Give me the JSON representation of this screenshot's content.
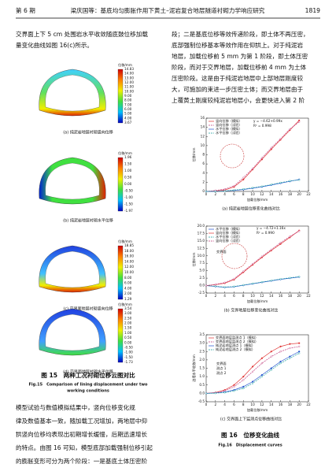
{
  "header": {
    "issue": "第 6 期",
    "running_title": "梁庆国等：基底均匀膨胀作用下黄土–泥岩复合地层隧道衬砌力学响应研究",
    "page": "1819"
  },
  "left_text": [
    "交界面上下 5 cm 处围岩水平收敛随底鼓位移加载",
    "量变化曲线如图 16(c)所示。"
  ],
  "figure15": {
    "panels": [
      {
        "unit": "位移/mm",
        "scale": [
          "14.83",
          "14.00",
          "13.00",
          "12.00",
          "11.00",
          "10.00",
          "9.00",
          "8.00",
          "7.00",
          "6.00",
          "5.00",
          "4.00",
          "3.67"
        ],
        "caption": "(a) 纯泥岩地层衬砌竖向位移"
      },
      {
        "unit": "位移/mm",
        "scale": [
          "1.96",
          "1.50",
          "1.00",
          "0.50",
          "0.00",
          "-0.50",
          "-1.00",
          "-1.50",
          "-1.97"
        ],
        "caption": "(b) 纯泥岩地层衬砌水平位移"
      },
      {
        "unit": "位移/mm",
        "scale": [
          "18.85",
          "18.00",
          "16.00",
          "14.00",
          "12.00",
          "10.00",
          "8.00",
          "6.00",
          "4.00",
          "2.00",
          "1.29"
        ],
        "caption": "(c) 交界面地层衬砌竖向位移"
      },
      {
        "unit": "位移/mm",
        "scale": [
          "3.54",
          "3.00",
          "2.50",
          "2.00",
          "1.50",
          "1.00",
          "0.50",
          "0.00",
          "-0.50",
          "-1.00",
          "-1.50",
          "-1.73"
        ],
        "caption": "(d) 交界面地层衬砌水平位移"
      }
    ],
    "caption_cn": "图 15　两种工况衬砌位移云图对比",
    "caption_en": [
      "Fig.15　Comparison of lining displacement under two",
      "working conditions"
    ]
  },
  "left_paragraph": [
    "模型试验与数值模拟结果中，竖向位移变化规",
    "律及数值基本一致，随加载工况增加，两地层中仰",
    "拱竖向位移均表现出初期增长缓慢，后期迅速增长",
    "的特点。由图 16 可知，模型底部加载强制位移引起",
    "的膨胀变形可分为两个阶段：一是基底土体压密阶"
  ],
  "right_text": [
    "段；二是基底位移等效传递阶段，即土体不再压密，",
    "底部强制位移基本等效作用在仰拱上。对于纯泥岩",
    "地层，加载位移前 5 mm 为第 1 阶段，即土体压密",
    "阶段，而对于交界地层，加载位移前 4 mm 为土体",
    "压密阶段。这是由于纯泥岩地层中上部地层刚度较",
    "大，可施加的束进一步压密土体；而交界地层由于",
    "上覆黄土刚度较纯泥岩地层小，会更快进入第 2 阶"
  ],
  "figure16": {
    "charts": [
      {
        "type": "line",
        "x_label": "加载位移/mm",
        "y_label": "位移/mm",
        "caption": "(a) 纯泥岩地层位移变化曲线对比",
        "x": [
          0,
          2,
          4,
          6,
          8,
          10,
          12,
          14,
          16,
          18,
          20
        ],
        "xlim": [
          0,
          22
        ],
        "xticks": [
          0,
          2,
          4,
          6,
          8,
          10,
          12,
          14,
          16,
          18,
          20,
          22
        ],
        "ylim": [
          0,
          16
        ],
        "yticks": [
          0,
          2,
          4,
          6,
          8,
          10,
          12,
          14,
          16
        ],
        "annotations": [
          "y = −4.62+0.99x",
          "R² = 0.998"
        ],
        "series": [
          {
            "name": "竖向位移（模拟）",
            "color": "#e03030",
            "dash": false,
            "values": [
              0,
              0.1,
              0.3,
              1.0,
              2.6,
              4.8,
              7.0,
              9.2,
              11.3,
              13.4,
              15.5
            ]
          },
          {
            "name": "竖向位移（试验）",
            "color": "#c04080",
            "dash": true,
            "values": [
              0,
              0.2,
              0.5,
              1.2,
              3.0,
              5.0,
              7.3,
              9.5,
              11.5,
              13.6,
              15.2
            ]
          },
          {
            "name": "水平位移（模拟）",
            "color": "#2050d0",
            "dash": false,
            "values": [
              0,
              0,
              0.1,
              0.2,
              0.4,
              0.7,
              1.0,
              1.4,
              1.8,
              2.2,
              2.6
            ]
          },
          {
            "name": "水平位移（试验）",
            "color": "#20a0a0",
            "dash": true,
            "values": [
              0,
              0,
              0.1,
              0.3,
              0.5,
              0.8,
              1.1,
              1.5,
              1.9,
              2.3,
              2.5
            ]
          }
        ]
      },
      {
        "type": "line",
        "x_label": "加载位移/mm",
        "y_label": "位移/mm",
        "caption": "(b) 交界地层位移变化曲线对比",
        "x": [
          0,
          2,
          4,
          6,
          8,
          10,
          12,
          14,
          16,
          18,
          20
        ],
        "xlim": [
          0,
          22
        ],
        "xticks": [
          0,
          2,
          4,
          6,
          8,
          10,
          12,
          14,
          16,
          18,
          20,
          22
        ],
        "ylim": [
          -2.5,
          20
        ],
        "yticks": [
          -2.5,
          {
            "value": 0,
            "label": "0.0"
          },
          2.5,
          {
            "value": 5,
            "label": "5.0"
          },
          7.5,
          {
            "value": 10,
            "label": "10.0"
          },
          12.5,
          {
            "value": 15,
            "label": "15.0"
          },
          17.5,
          {
            "value": 20,
            "label": "20.0"
          }
        ],
        "annotations": [
          "y = −4.72+1.16x",
          "R² = 0.990",
          "交界面"
        ],
        "series": [
          {
            "name": "水平位移（模拟）",
            "color": "#2050d0",
            "dash": false,
            "values": [
              0,
              -0.3,
              -0.6,
              -0.4,
              0.1,
              0.6,
              1.1,
              1.6,
              2.1,
              2.5,
              2.9
            ]
          },
          {
            "name": "竖向位移（模拟）",
            "color": "#e03030",
            "dash": false,
            "values": [
              0,
              0.3,
              0.8,
              2.0,
              4.5,
              7.0,
              9.5,
              11.8,
              14.0,
              16.2,
              18.5
            ]
          },
          {
            "name": "水平位移（试验）",
            "color": "#20a0a0",
            "dash": true,
            "values": [
              0,
              -0.2,
              -0.5,
              -0.3,
              0.2,
              0.7,
              1.2,
              1.7,
              2.2,
              2.6,
              3.0
            ]
          },
          {
            "name": "竖向位移（试验）",
            "color": "#c04080",
            "dash": true,
            "values": [
              0,
              0.4,
              1.0,
              2.3,
              4.8,
              7.3,
              9.8,
              12.1,
              14.4,
              16.5,
              18.3
            ]
          }
        ]
      },
      {
        "type": "line",
        "x_label": "加载位移/mm",
        "y_label": "边墙水平收敛/mm",
        "caption": "(c) 交界面上下监测点位移曲线对比",
        "x": [
          0,
          2,
          4,
          6,
          8,
          10,
          12,
          14,
          16,
          18,
          20
        ],
        "xlim": [
          0,
          22
        ],
        "xticks": [
          0,
          2,
          4,
          6,
          8,
          10,
          12,
          14,
          16,
          18,
          20,
          22
        ],
        "ylim": [
          -0.5,
          3.5
        ],
        "yticks": [
          -0.5,
          {
            "value": 0,
            "label": "0.0"
          },
          0.5,
          {
            "value": 1,
            "label": "1.0"
          },
          1.5,
          {
            "value": 2,
            "label": "2.0"
          },
          2.5,
          {
            "value": 3,
            "label": "3.0"
          },
          3.5
        ],
        "annotations": [
          "交界面",
          "测点 1",
          "测点 2"
        ],
        "series": [
          {
            "name": "交界面地层监测点 1（模拟）",
            "color": "#e03030",
            "dash": false,
            "values": [
              0,
              0.05,
              0.2,
              0.5,
              1.0,
              1.6,
              2.1,
              2.5,
              2.8,
              2.95,
              3.0
            ]
          },
          {
            "name": "交界面地层监测点 2（模拟）",
            "color": "#c04080",
            "dash": true,
            "values": [
              0,
              0.03,
              0.15,
              0.4,
              0.8,
              1.3,
              1.8,
              2.2,
              2.5,
              2.7,
              2.8
            ]
          },
          {
            "name": "纯泥岩地层测点 1（模拟）",
            "color": "#2050d0",
            "dash": false,
            "values": [
              0,
              0.02,
              0.08,
              0.2,
              0.4,
              0.7,
              1.1,
              1.5,
              1.9,
              2.2,
              2.5
            ]
          },
          {
            "name": "纯泥岩地层测点 2（模拟）",
            "color": "#20a0a0",
            "dash": true,
            "values": [
              0,
              0.01,
              0.05,
              0.15,
              0.3,
              0.6,
              1.0,
              1.4,
              1.8,
              2.1,
              2.4
            ]
          }
        ]
      }
    ],
    "caption_cn": "图 16　位移变化曲线",
    "caption_en": "Fig.16　Displacement curves"
  }
}
